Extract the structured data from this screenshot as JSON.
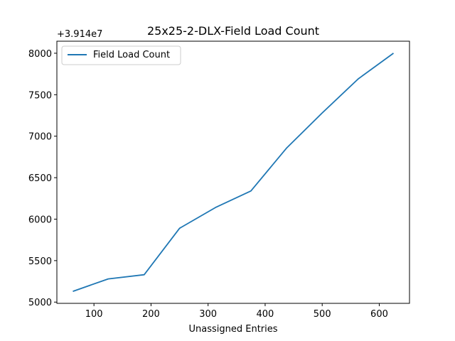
{
  "chart_data": {
    "type": "line",
    "title": "25x25-2-DLX-Field Load Count",
    "xlabel": "Unassigned Entries",
    "ylabel": "",
    "y_offset_label": "+3.914e7",
    "x": [
      63,
      125,
      188,
      250,
      313,
      375,
      438,
      500,
      563,
      625
    ],
    "series": [
      {
        "name": "Field Load Count",
        "color": "#1f77b4",
        "values": [
          5130,
          5280,
          5330,
          5890,
          6140,
          6340,
          6860,
          7280,
          7690,
          8000
        ]
      }
    ],
    "xlim": [
      35,
      653
    ],
    "ylim": [
      4985,
      8145
    ],
    "xticks": [
      100,
      200,
      300,
      400,
      500,
      600
    ],
    "yticks": [
      5000,
      5500,
      6000,
      6500,
      7000,
      7500,
      8000
    ],
    "legend": "top-left",
    "grid": false
  }
}
